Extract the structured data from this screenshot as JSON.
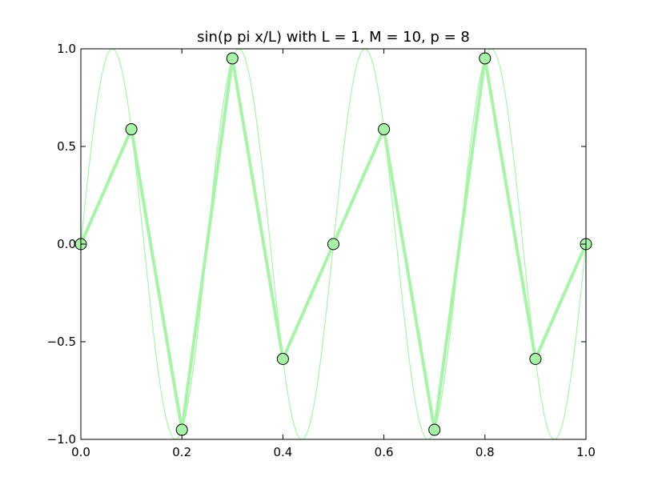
{
  "chart_data": {
    "type": "line",
    "title": "sin(p pi x/L) with L = 1, M = 10, p = 8",
    "xlabel": "",
    "ylabel": "",
    "xlim": [
      0.0,
      1.0
    ],
    "ylim": [
      -1.0,
      1.0
    ],
    "x_ticks": [
      "0.0",
      "0.2",
      "0.4",
      "0.6",
      "0.8",
      "1.0"
    ],
    "y_ticks": [
      "1.0",
      "0.5",
      "0.0",
      "−0.5",
      "−1.0"
    ],
    "grid": false,
    "legend": "none",
    "colors": {
      "line": "#a6f5a6",
      "marker_fill": "#a6f5a6",
      "marker_edge": "#000000"
    },
    "series": [
      {
        "kind": "sampled",
        "x": [
          0.0,
          0.1,
          0.2,
          0.3,
          0.4,
          0.5,
          0.6,
          0.7,
          0.8,
          0.9,
          1.0
        ],
        "y": [
          0.0,
          0.588,
          -0.951,
          0.951,
          -0.588,
          0.0,
          0.588,
          -0.951,
          0.951,
          -0.588,
          0.0
        ]
      },
      {
        "kind": "continuous",
        "function": "sin(8 pi x)"
      }
    ]
  }
}
